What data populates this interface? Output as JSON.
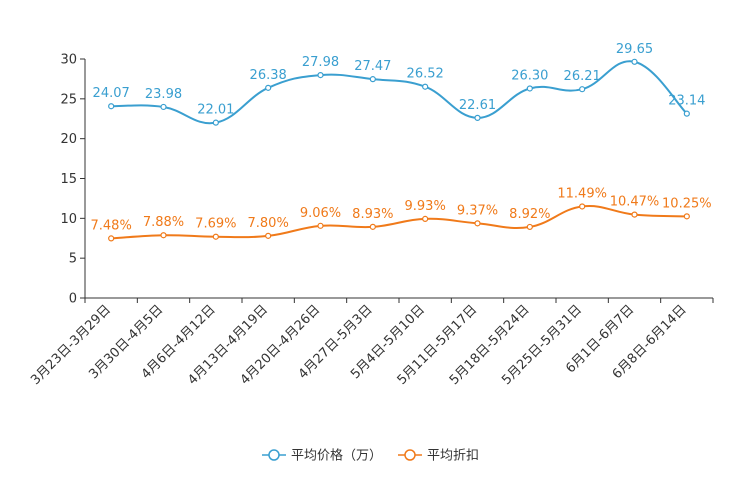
{
  "chart_data": {
    "type": "line",
    "categories": [
      "3月23日-3月29日",
      "3月30日-4月5日",
      "4月6日-4月12日",
      "4月13日-4月19日",
      "4月20日-4月26日",
      "4月27日-5月3日",
      "5月4日-5月10日",
      "5月11日-5月17日",
      "5月18日-5月24日",
      "5月25日-5月31日",
      "6月1日-6月7日",
      "6月8日-6月14日"
    ],
    "ylim": [
      0,
      30
    ],
    "yticks": [
      0,
      5,
      10,
      15,
      20,
      25,
      30
    ],
    "legend_position": "bottom-center",
    "series": [
      {
        "name": "平均价格（万）",
        "color": "#3a9fd0",
        "values": [
          24.07,
          23.98,
          22.01,
          26.38,
          27.98,
          27.47,
          26.52,
          22.61,
          26.3,
          26.21,
          29.65,
          23.14
        ],
        "labels": [
          "24.07",
          "23.98",
          "22.01",
          "26.38",
          "27.98",
          "27.47",
          "26.52",
          "22.61",
          "26.30",
          "26.21",
          "29.65",
          "23.14"
        ]
      },
      {
        "name": "平均折扣",
        "color": "#f07a1a",
        "values": [
          7.48,
          7.88,
          7.69,
          7.8,
          9.06,
          8.93,
          9.93,
          9.37,
          8.92,
          11.49,
          10.47,
          10.25
        ],
        "labels": [
          "7.48%",
          "7.88%",
          "7.69%",
          "7.80%",
          "9.06%",
          "8.93%",
          "9.93%",
          "9.37%",
          "8.92%",
          "11.49%",
          "10.47%",
          "10.25%"
        ]
      }
    ]
  }
}
